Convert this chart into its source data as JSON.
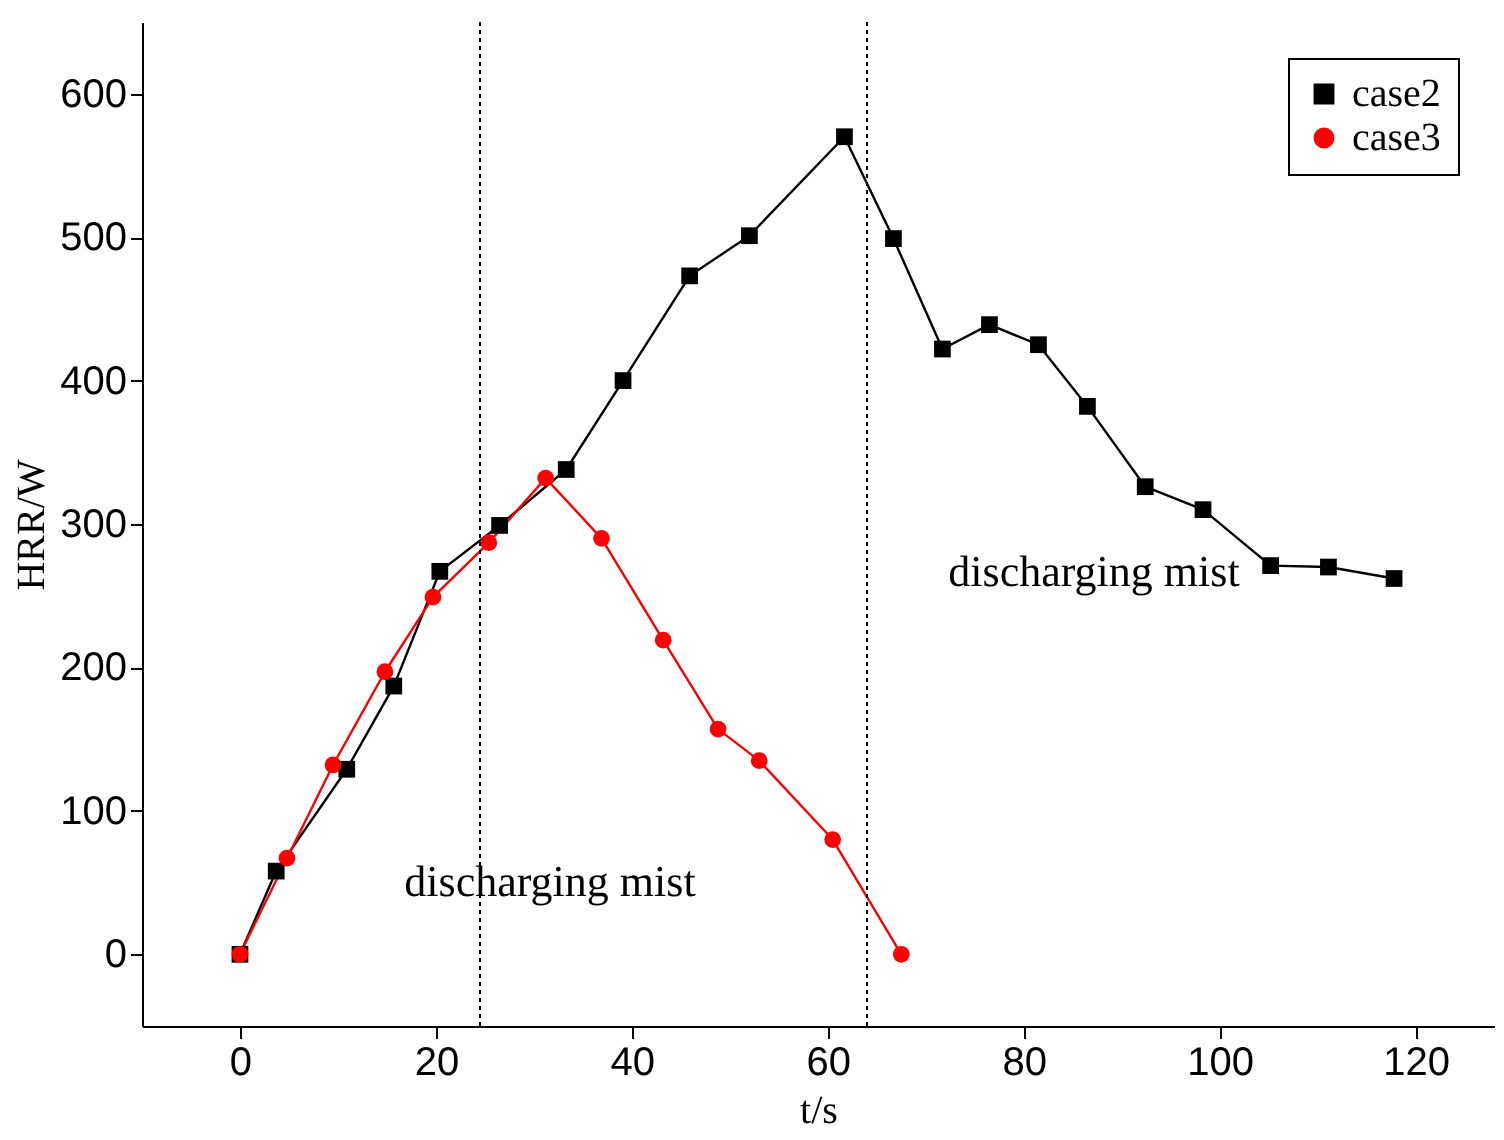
{
  "chart_data": {
    "type": "line",
    "xlabel": "t/s",
    "ylabel": "HRR/W",
    "xlim": [
      -10,
      128
    ],
    "ylim": [
      -50,
      650
    ],
    "xticks": [
      0,
      20,
      40,
      60,
      80,
      100,
      120
    ],
    "yticks": [
      0,
      100,
      200,
      300,
      400,
      500,
      600
    ],
    "grid": false,
    "legend": "top right",
    "series": [
      {
        "name": "case2",
        "color": "#000000",
        "marker": "square",
        "x": [
          0,
          3.7,
          10.9,
          15.7,
          20.4,
          26.5,
          33.3,
          39.1,
          45.9,
          52,
          61.7,
          66.7,
          71.7,
          76.5,
          81.5,
          86.5,
          92.4,
          98.3,
          105.2,
          111.1,
          117.8
        ],
        "values": [
          0,
          58,
          129,
          187,
          267,
          299,
          338,
          400,
          473,
          501,
          570,
          499,
          422,
          439,
          425,
          382,
          326,
          310,
          271,
          270,
          262
        ]
      },
      {
        "name": "case3",
        "color": "#ff0000",
        "marker": "circle",
        "x": [
          0,
          4.8,
          9.5,
          14.8,
          19.7,
          25.4,
          31.2,
          36.9,
          43.2,
          48.8,
          53,
          60.5,
          67.5
        ],
        "values": [
          0,
          67,
          132,
          197,
          249,
          287,
          332,
          290,
          219,
          157,
          135,
          80,
          0
        ]
      }
    ],
    "ref_lines": [
      {
        "axis": "x",
        "value": 24.5,
        "color": "#000000",
        "line_style": "dotted"
      },
      {
        "axis": "x",
        "value": 64,
        "color": "#000000",
        "line_style": "dotted"
      }
    ],
    "annotations": [
      "discharging mist",
      "discharging mist"
    ]
  }
}
